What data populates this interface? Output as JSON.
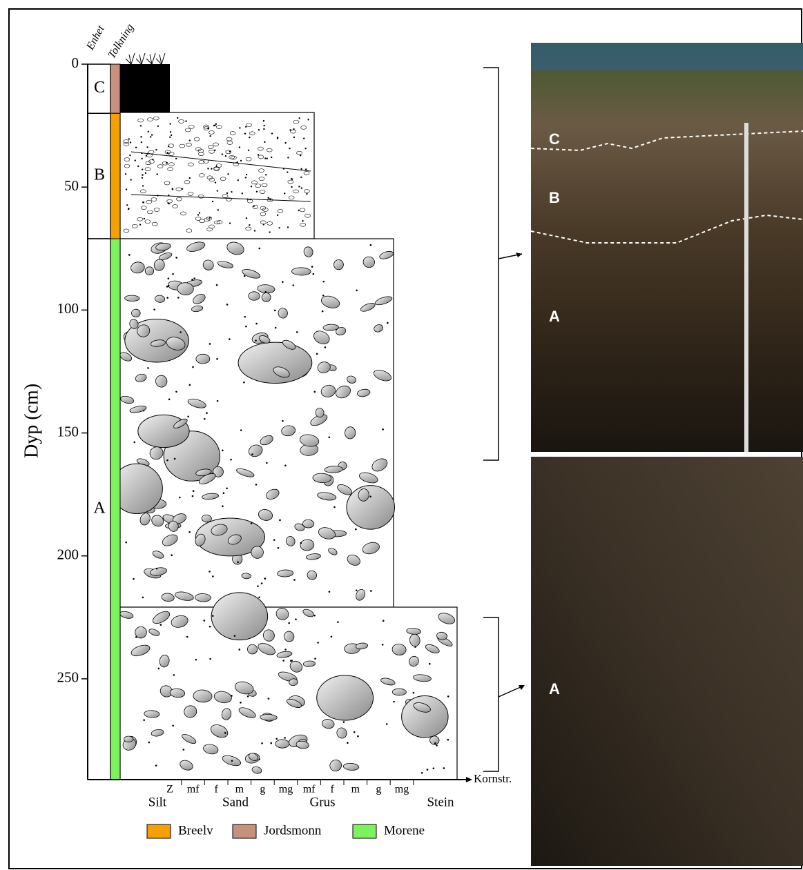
{
  "headers": {
    "unit": "Enhet",
    "interpretation": "Tolkning"
  },
  "depth_axis": {
    "label": "Dyp (cm)",
    "lim": [
      0,
      291
    ],
    "ticks": [
      0,
      50,
      100,
      150,
      200,
      250
    ]
  },
  "units": [
    {
      "label": "C",
      "top": 0,
      "bottom": 20,
      "interpretation": "Jordsmonn"
    },
    {
      "label": "B",
      "top": 20,
      "bottom": 71,
      "interpretation": "Breelv"
    },
    {
      "label": "A",
      "top": 71,
      "bottom": 291,
      "interpretation": "Morene"
    }
  ],
  "grain_size": {
    "axis_label": "Kornstr.",
    "classes": [
      "Z",
      "mf",
      "f",
      "m",
      "g",
      "mg",
      "mf",
      "f",
      "m",
      "g",
      "mg"
    ],
    "groups": [
      "Silt",
      "Sand",
      "Grus",
      "Stein"
    ]
  },
  "legend": [
    {
      "name": "Breelv",
      "color": "#f5a000"
    },
    {
      "name": "Jordsmonn",
      "color": "#c7917c"
    },
    {
      "name": "Morene",
      "color": "#7cf25c"
    }
  ],
  "photos": [
    {
      "labels": [
        "C",
        "B",
        "A"
      ]
    },
    {
      "labels": [
        "A"
      ]
    }
  ]
}
